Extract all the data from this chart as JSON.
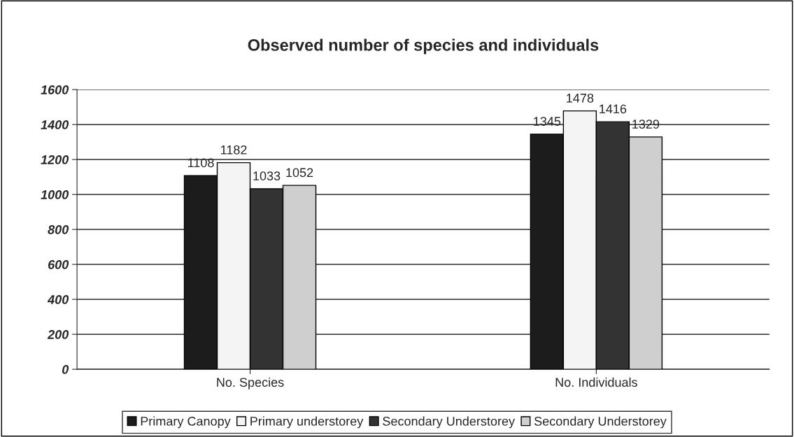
{
  "chart_data": {
    "type": "bar",
    "title": "Observed number of species and individuals",
    "categories": [
      "No. Species",
      "No. Individuals"
    ],
    "series": [
      {
        "name": "Primary Canopy",
        "color": "#1c1c1c",
        "values": [
          1108,
          1345
        ]
      },
      {
        "name": "Primary understorey",
        "color": "#f4f4f4",
        "values": [
          1182,
          1478
        ]
      },
      {
        "name": "Secondary Understorey",
        "color": "#333333",
        "values": [
          1033,
          1416
        ]
      },
      {
        "name": "Secondary Understorey",
        "color": "#cfcfcf",
        "values": [
          1052,
          1329
        ]
      }
    ],
    "ylim": [
      0,
      1600
    ],
    "yticks": [
      0,
      200,
      400,
      600,
      800,
      1000,
      1200,
      1400,
      1600
    ],
    "grid": "y",
    "legend": "bottom",
    "data_labels": true
  }
}
